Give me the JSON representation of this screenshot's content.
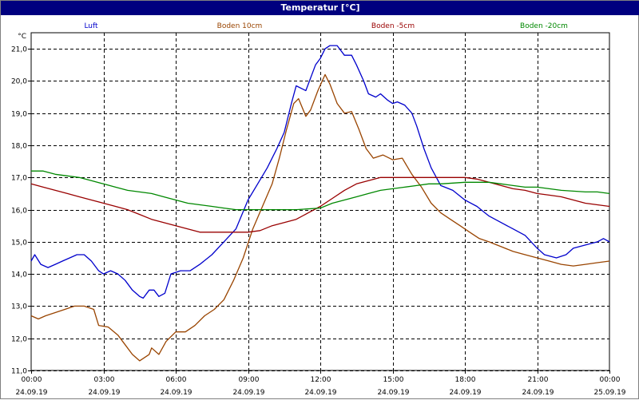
{
  "chart_data": {
    "type": "line",
    "title": "Temperatur [°C]",
    "ylabel": "°C",
    "ylim": [
      11,
      21.5
    ],
    "yticks": [
      "11,0",
      "12,0",
      "13,0",
      "14,0",
      "15,0",
      "16,0",
      "17,0",
      "18,0",
      "19,0",
      "20,0",
      "21,0"
    ],
    "xlim": [
      0,
      24
    ],
    "xticks": [
      {
        "time": "00:00",
        "date": "24.09.19"
      },
      {
        "time": "03:00",
        "date": "24.09.19"
      },
      {
        "time": "06:00",
        "date": "24.09.19"
      },
      {
        "time": "09:00",
        "date": "24.09.19"
      },
      {
        "time": "12:00",
        "date": "24.09.19"
      },
      {
        "time": "15:00",
        "date": "24.09.19"
      },
      {
        "time": "18:00",
        "date": "24.09.19"
      },
      {
        "time": "21:00",
        "date": "24.09.19"
      },
      {
        "time": "00:00",
        "date": "25.09.19"
      }
    ],
    "grid": true,
    "legend_position": "top",
    "series": [
      {
        "name": "Luft",
        "color": "#0000cc",
        "points": [
          [
            0,
            14.4
          ],
          [
            0.15,
            14.6
          ],
          [
            0.4,
            14.3
          ],
          [
            0.7,
            14.2
          ],
          [
            1.0,
            14.3
          ],
          [
            1.3,
            14.4
          ],
          [
            1.6,
            14.5
          ],
          [
            1.9,
            14.6
          ],
          [
            2.2,
            14.6
          ],
          [
            2.5,
            14.4
          ],
          [
            2.8,
            14.1
          ],
          [
            3.0,
            14.0
          ],
          [
            3.3,
            14.1
          ],
          [
            3.6,
            14.0
          ],
          [
            3.9,
            13.8
          ],
          [
            4.2,
            13.5
          ],
          [
            4.5,
            13.3
          ],
          [
            4.65,
            13.25
          ],
          [
            4.9,
            13.5
          ],
          [
            5.1,
            13.5
          ],
          [
            5.3,
            13.3
          ],
          [
            5.55,
            13.4
          ],
          [
            5.8,
            14.0
          ],
          [
            6.2,
            14.1
          ],
          [
            6.6,
            14.1
          ],
          [
            7.0,
            14.3
          ],
          [
            7.5,
            14.6
          ],
          [
            8.0,
            15.0
          ],
          [
            8.5,
            15.4
          ],
          [
            9.0,
            16.3
          ],
          [
            9.4,
            16.8
          ],
          [
            9.8,
            17.3
          ],
          [
            10.2,
            17.9
          ],
          [
            10.5,
            18.4
          ],
          [
            10.8,
            19.3
          ],
          [
            11.0,
            19.85
          ],
          [
            11.4,
            19.7
          ],
          [
            11.8,
            20.5
          ],
          [
            12.0,
            20.7
          ],
          [
            12.2,
            21.0
          ],
          [
            12.4,
            21.1
          ],
          [
            12.7,
            21.1
          ],
          [
            13.0,
            20.8
          ],
          [
            13.3,
            20.8
          ],
          [
            13.5,
            20.5
          ],
          [
            13.8,
            20.0
          ],
          [
            14.0,
            19.6
          ],
          [
            14.3,
            19.5
          ],
          [
            14.5,
            19.6
          ],
          [
            14.8,
            19.4
          ],
          [
            15.0,
            19.3
          ],
          [
            15.2,
            19.35
          ],
          [
            15.5,
            19.25
          ],
          [
            15.8,
            19.0
          ],
          [
            16.0,
            18.6
          ],
          [
            16.3,
            17.9
          ],
          [
            16.6,
            17.3
          ],
          [
            17.0,
            16.75
          ],
          [
            17.5,
            16.6
          ],
          [
            18.0,
            16.3
          ],
          [
            18.5,
            16.1
          ],
          [
            19.0,
            15.8
          ],
          [
            19.5,
            15.6
          ],
          [
            20.0,
            15.4
          ],
          [
            20.5,
            15.2
          ],
          [
            21.0,
            14.8
          ],
          [
            21.3,
            14.6
          ],
          [
            21.8,
            14.5
          ],
          [
            22.2,
            14.6
          ],
          [
            22.5,
            14.8
          ],
          [
            23.0,
            14.9
          ],
          [
            23.5,
            15.0
          ],
          [
            23.75,
            15.1
          ],
          [
            24.0,
            15.0
          ]
        ]
      },
      {
        "name": "Boden 10cm",
        "color": "#994400",
        "points": [
          [
            0,
            12.7
          ],
          [
            0.3,
            12.6
          ],
          [
            0.6,
            12.7
          ],
          [
            1.0,
            12.8
          ],
          [
            1.4,
            12.9
          ],
          [
            1.8,
            13.0
          ],
          [
            2.2,
            13.0
          ],
          [
            2.6,
            12.9
          ],
          [
            2.8,
            12.4
          ],
          [
            3.2,
            12.35
          ],
          [
            3.6,
            12.1
          ],
          [
            3.9,
            11.8
          ],
          [
            4.2,
            11.5
          ],
          [
            4.5,
            11.3
          ],
          [
            4.9,
            11.5
          ],
          [
            5.0,
            11.7
          ],
          [
            5.3,
            11.5
          ],
          [
            5.6,
            11.9
          ],
          [
            6.0,
            12.2
          ],
          [
            6.4,
            12.2
          ],
          [
            6.8,
            12.4
          ],
          [
            7.2,
            12.7
          ],
          [
            7.6,
            12.9
          ],
          [
            8.0,
            13.2
          ],
          [
            8.4,
            13.8
          ],
          [
            8.8,
            14.5
          ],
          [
            9.2,
            15.4
          ],
          [
            9.6,
            16.1
          ],
          [
            10.0,
            16.8
          ],
          [
            10.3,
            17.6
          ],
          [
            10.6,
            18.5
          ],
          [
            10.9,
            19.3
          ],
          [
            11.1,
            19.45
          ],
          [
            11.4,
            18.9
          ],
          [
            11.6,
            19.1
          ],
          [
            11.9,
            19.7
          ],
          [
            12.2,
            20.2
          ],
          [
            12.4,
            19.9
          ],
          [
            12.7,
            19.3
          ],
          [
            13.0,
            19.0
          ],
          [
            13.3,
            19.05
          ],
          [
            13.6,
            18.5
          ],
          [
            13.9,
            17.9
          ],
          [
            14.2,
            17.6
          ],
          [
            14.6,
            17.7
          ],
          [
            15.0,
            17.55
          ],
          [
            15.4,
            17.6
          ],
          [
            15.8,
            17.1
          ],
          [
            16.2,
            16.7
          ],
          [
            16.6,
            16.2
          ],
          [
            17.0,
            15.9
          ],
          [
            17.4,
            15.7
          ],
          [
            17.8,
            15.5
          ],
          [
            18.2,
            15.3
          ],
          [
            18.6,
            15.1
          ],
          [
            19.0,
            15.0
          ],
          [
            19.5,
            14.85
          ],
          [
            20.0,
            14.7
          ],
          [
            20.5,
            14.6
          ],
          [
            21.0,
            14.5
          ],
          [
            21.5,
            14.4
          ],
          [
            22.0,
            14.3
          ],
          [
            22.5,
            14.25
          ],
          [
            23.0,
            14.3
          ],
          [
            23.5,
            14.35
          ],
          [
            24.0,
            14.4
          ]
        ]
      },
      {
        "name": "Boden -5cm",
        "color": "#990000",
        "points": [
          [
            0,
            16.8
          ],
          [
            0.5,
            16.7
          ],
          [
            1.0,
            16.6
          ],
          [
            1.5,
            16.5
          ],
          [
            2.0,
            16.4
          ],
          [
            2.5,
            16.3
          ],
          [
            3.0,
            16.2
          ],
          [
            3.5,
            16.1
          ],
          [
            4.0,
            16.0
          ],
          [
            4.5,
            15.85
          ],
          [
            5.0,
            15.7
          ],
          [
            5.5,
            15.6
          ],
          [
            6.0,
            15.5
          ],
          [
            6.5,
            15.4
          ],
          [
            7.0,
            15.3
          ],
          [
            8.0,
            15.3
          ],
          [
            9.0,
            15.3
          ],
          [
            9.5,
            15.35
          ],
          [
            10.0,
            15.5
          ],
          [
            10.5,
            15.6
          ],
          [
            11.0,
            15.7
          ],
          [
            11.5,
            15.9
          ],
          [
            12.0,
            16.1
          ],
          [
            12.5,
            16.35
          ],
          [
            13.0,
            16.6
          ],
          [
            13.5,
            16.8
          ],
          [
            14.0,
            16.9
          ],
          [
            14.5,
            17.0
          ],
          [
            15.0,
            17.0
          ],
          [
            16.0,
            17.0
          ],
          [
            17.0,
            17.0
          ],
          [
            18.0,
            17.0
          ],
          [
            18.5,
            16.95
          ],
          [
            19.0,
            16.85
          ],
          [
            19.5,
            16.75
          ],
          [
            20.0,
            16.65
          ],
          [
            20.5,
            16.6
          ],
          [
            21.0,
            16.5
          ],
          [
            21.5,
            16.45
          ],
          [
            22.0,
            16.4
          ],
          [
            22.5,
            16.3
          ],
          [
            23.0,
            16.2
          ],
          [
            23.5,
            16.15
          ],
          [
            24.0,
            16.1
          ]
        ]
      },
      {
        "name": "Boden -20cm",
        "color": "#008800",
        "points": [
          [
            0,
            17.2
          ],
          [
            0.5,
            17.2
          ],
          [
            1.0,
            17.1
          ],
          [
            1.5,
            17.05
          ],
          [
            2.0,
            17.0
          ],
          [
            2.5,
            16.9
          ],
          [
            3.0,
            16.8
          ],
          [
            3.5,
            16.7
          ],
          [
            4.0,
            16.6
          ],
          [
            4.5,
            16.55
          ],
          [
            5.0,
            16.5
          ],
          [
            5.5,
            16.4
          ],
          [
            6.0,
            16.3
          ],
          [
            6.5,
            16.2
          ],
          [
            7.0,
            16.15
          ],
          [
            7.5,
            16.1
          ],
          [
            8.0,
            16.05
          ],
          [
            8.5,
            16.0
          ],
          [
            9.0,
            16.0
          ],
          [
            10.0,
            16.0
          ],
          [
            11.0,
            16.0
          ],
          [
            12.0,
            16.05
          ],
          [
            12.5,
            16.2
          ],
          [
            13.0,
            16.3
          ],
          [
            13.5,
            16.4
          ],
          [
            14.0,
            16.5
          ],
          [
            14.5,
            16.6
          ],
          [
            15.0,
            16.65
          ],
          [
            15.5,
            16.7
          ],
          [
            16.0,
            16.75
          ],
          [
            16.5,
            16.8
          ],
          [
            17.0,
            16.8
          ],
          [
            18.0,
            16.85
          ],
          [
            19.0,
            16.85
          ],
          [
            19.5,
            16.8
          ],
          [
            20.0,
            16.75
          ],
          [
            20.5,
            16.7
          ],
          [
            21.0,
            16.7
          ],
          [
            21.5,
            16.65
          ],
          [
            22.0,
            16.6
          ],
          [
            23.0,
            16.55
          ],
          [
            23.5,
            16.55
          ],
          [
            24.0,
            16.5
          ]
        ]
      }
    ]
  }
}
